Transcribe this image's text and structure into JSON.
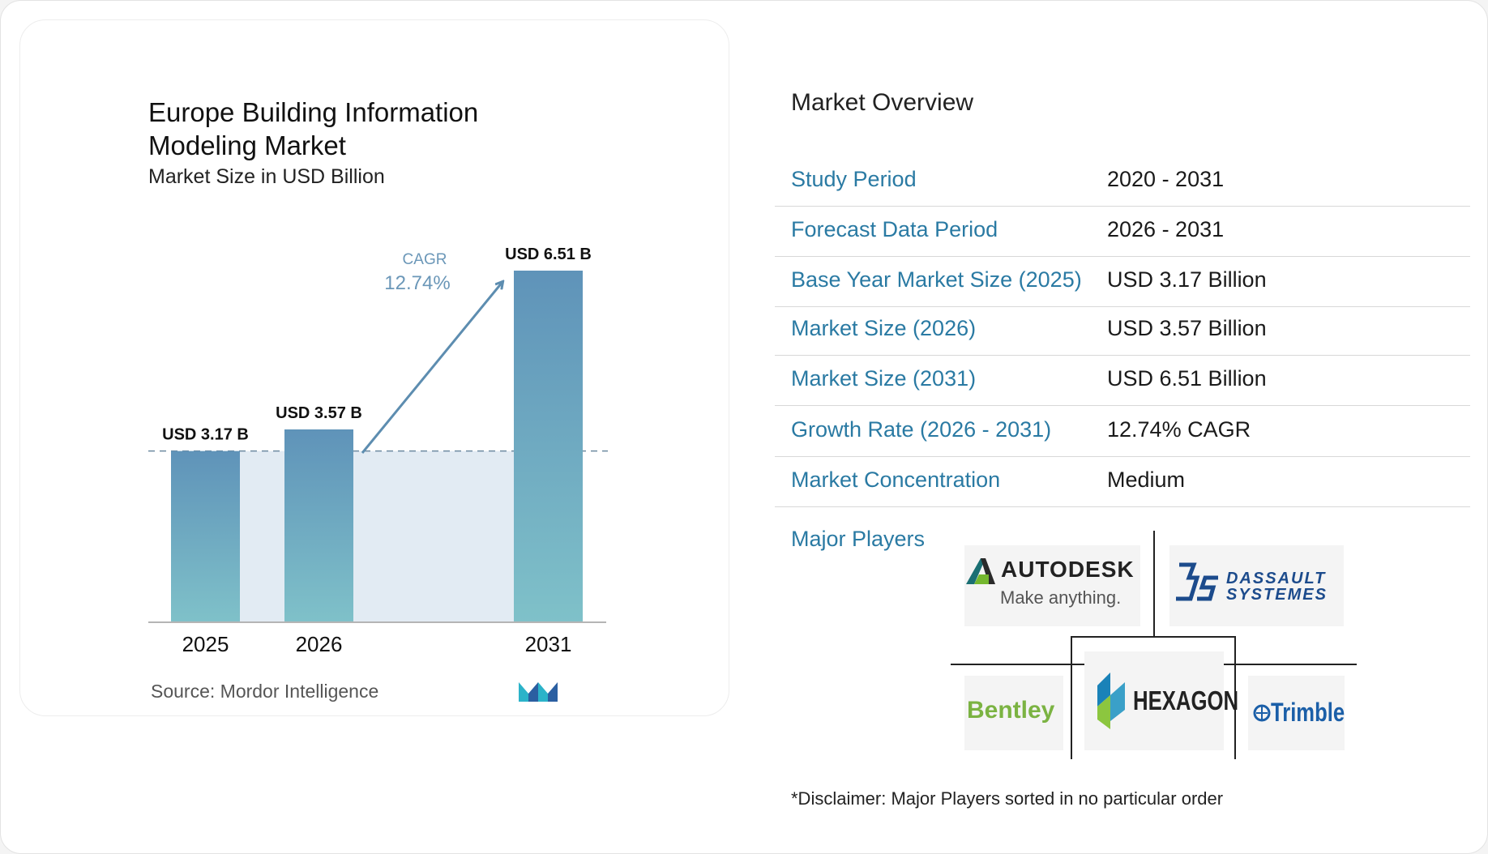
{
  "chart_data": {
    "type": "bar",
    "title": "Europe Building Information Modeling Market",
    "subtitle": "Market Size in USD Billion",
    "categories": [
      "2025",
      "2026",
      "2031"
    ],
    "values": [
      3.17,
      3.57,
      6.51
    ],
    "data_labels": [
      "USD 3.17 B",
      "USD 3.57 B",
      "USD 6.51 B"
    ],
    "cagr_label": "CAGR",
    "cagr_value": "12.74%",
    "ylim": [
      0,
      6.51
    ],
    "grid": false,
    "colors": {
      "bar_top": "#5f93b9",
      "bar_bottom": "#7fc1c9",
      "band": "#e2ebf3",
      "arrow": "#5d8db0",
      "cagr_text": "#6b97b8",
      "baseline_dash": "#6d8aa0"
    }
  },
  "source": "Source:  Mordor Intelligence",
  "brand_icon": "mordor-intelligence-logo",
  "overview": {
    "title": "Market Overview",
    "rows": [
      {
        "label": "Study Period",
        "value": "2020 - 2031"
      },
      {
        "label": "Forecast Data Period",
        "value": "2026 - 2031"
      },
      {
        "label": "Base Year Market Size (2025)",
        "value": "USD 3.17 Billion"
      },
      {
        "label": "Market Size (2026)",
        "value": "USD 3.57 Billion"
      },
      {
        "label": "Market Size (2031)",
        "value": "USD 6.51 Billion"
      },
      {
        "label": "Growth Rate (2026 - 2031)",
        "value": "12.74% CAGR"
      },
      {
        "label": "Market Concentration",
        "value": "Medium"
      }
    ],
    "label_color": "#2a7aa3"
  },
  "players": {
    "label": "Major Players",
    "logos": {
      "autodesk": {
        "name": "AUTODESK",
        "tagline": "Make anything."
      },
      "dassault": {
        "line1": "DASSAULT",
        "line2": "SYSTEMES"
      },
      "bentley": {
        "name": "Bentley"
      },
      "hexagon": {
        "name": "HEXAGON"
      },
      "trimble": {
        "name": "Trimble"
      }
    }
  },
  "disclaimer": "*Disclaimer: Major Players sorted in no particular order"
}
